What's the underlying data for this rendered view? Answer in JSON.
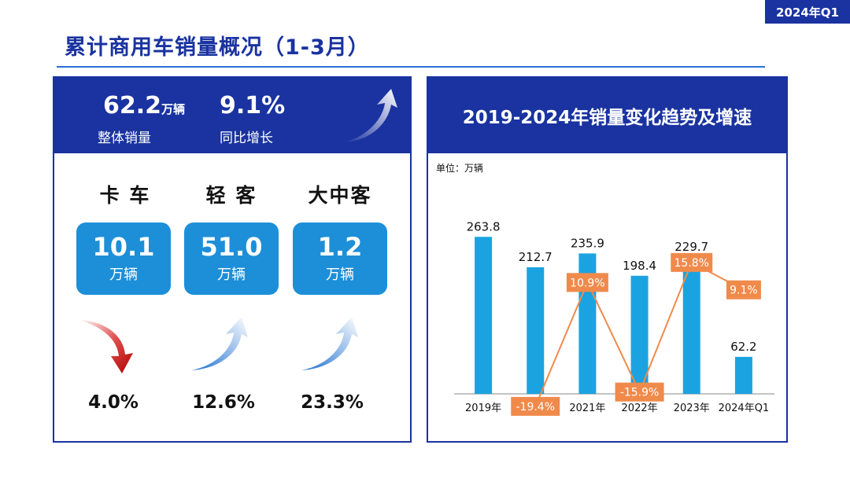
{
  "tag": "2024年Q1",
  "title": "累计商用车销量概况（1-3月）",
  "summary": {
    "total_value": "62.2",
    "total_unit": "万辆",
    "total_label": "整体销量",
    "growth_value": "9.1%",
    "growth_label": "同比增长"
  },
  "segments": [
    {
      "label": "卡 车",
      "value": "10.1",
      "unit": "万辆",
      "change": "4.0%",
      "trend": "down"
    },
    {
      "label": "轻 客",
      "value": "51.0",
      "unit": "万辆",
      "change": "12.6%",
      "trend": "up"
    },
    {
      "label": "大中客",
      "value": "1.2",
      "unit": "万辆",
      "change": "23.3%",
      "trend": "up"
    }
  ],
  "chart_data": {
    "type": "bar",
    "title": "2019-2024年销量变化趋势及增速",
    "unit_label": "单位：万辆",
    "categories": [
      "2019年",
      "2020年",
      "2021年",
      "2022年",
      "2023年",
      "2024年Q1"
    ],
    "series": [
      {
        "name": "销量",
        "type": "bar",
        "values": [
          263.8,
          212.7,
          235.9,
          198.4,
          229.7,
          62.2
        ],
        "labels": [
          "263.8",
          "212.7",
          "235.9",
          "198.4",
          "229.7",
          "62.2"
        ]
      },
      {
        "name": "增速",
        "type": "line",
        "values": [
          null,
          -19.4,
          10.9,
          -15.9,
          15.8,
          9.1
        ],
        "labels": [
          "",
          "-19.4%",
          "10.9%",
          "-15.9%",
          "15.8%",
          "9.1%"
        ]
      }
    ],
    "colors": {
      "bar": "#1aa3e0",
      "line": "#f08a4b",
      "label_bg": "#f08a4b"
    }
  }
}
